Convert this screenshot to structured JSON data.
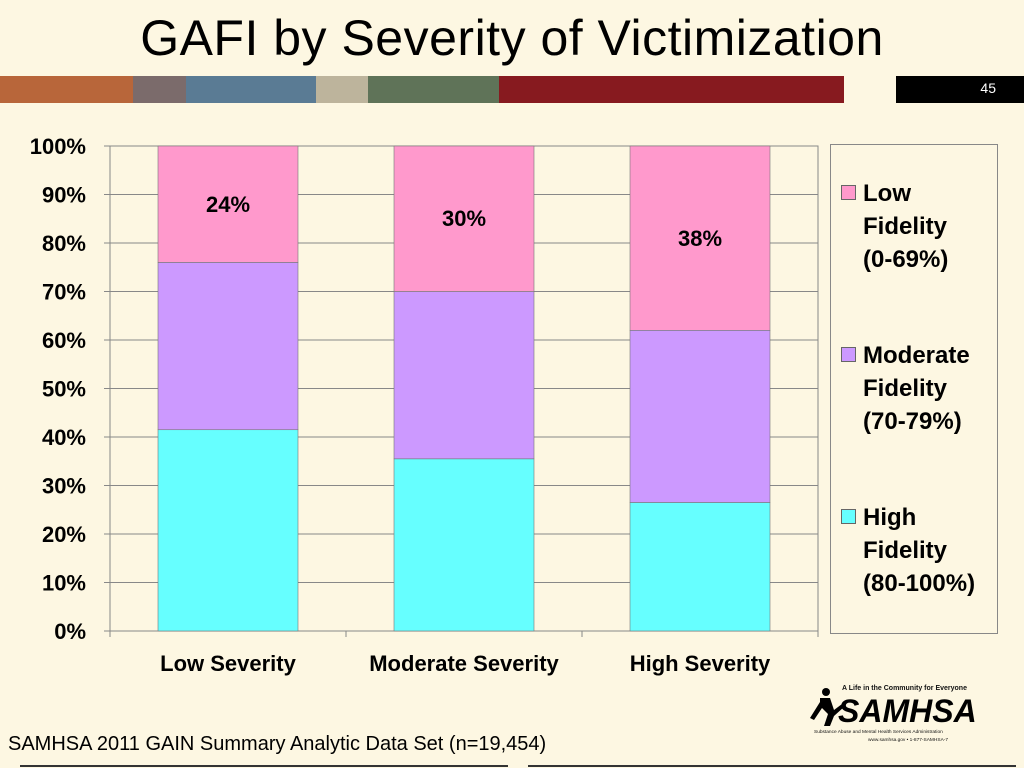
{
  "slide": {
    "title": "GAFI by Severity of Victimization",
    "number": "45",
    "source": "SAMHSA 2011 GAIN Summary Analytic Data Set (n=19,454)",
    "color_bar": [
      "#b8663a",
      "#7b6b6b",
      "#5a7b94",
      "#bdb49c",
      "#5f7358",
      "#871a1f",
      "#fdf7e2",
      "#000000"
    ]
  },
  "logo": {
    "tagline": "A Life in the Community for Everyone",
    "name": "SAMHSA",
    "subtitle": "Substance Abuse and Mental Health Services Administration",
    "contact": "www.samhsa.gov • 1-877-SAMHSA-7"
  },
  "chart_data": {
    "type": "bar",
    "stacked": true,
    "categories": [
      "Low Severity",
      "Moderate Severity",
      "High Severity"
    ],
    "series": [
      {
        "name": "High Fidelity (80-100%)",
        "color": "#66ffff",
        "values": [
          41.5,
          35.5,
          26.5
        ]
      },
      {
        "name": "Moderate Fidelity (70-79%)",
        "color": "#cc99ff",
        "values": [
          34.5,
          34.5,
          35.5
        ]
      },
      {
        "name": "Low Fidelity (0-69%)",
        "color": "#ff99cc",
        "values": [
          24,
          30,
          38
        ]
      }
    ],
    "data_labels": [
      "24%",
      "30%",
      "38%"
    ],
    "y_ticks": [
      "0%",
      "10%",
      "20%",
      "30%",
      "40%",
      "50%",
      "60%",
      "70%",
      "80%",
      "90%",
      "100%"
    ],
    "ylim": [
      0,
      100
    ],
    "grid": true,
    "legend_position": "right",
    "legend": [
      {
        "label": "Low\nFidelity\n(0-69%)",
        "color": "#ff99cc"
      },
      {
        "label": "Moderate\nFidelity\n(70-79%)",
        "color": "#cc99ff"
      },
      {
        "label": "High\nFidelity\n(80-100%)",
        "color": "#66ffff"
      }
    ]
  }
}
